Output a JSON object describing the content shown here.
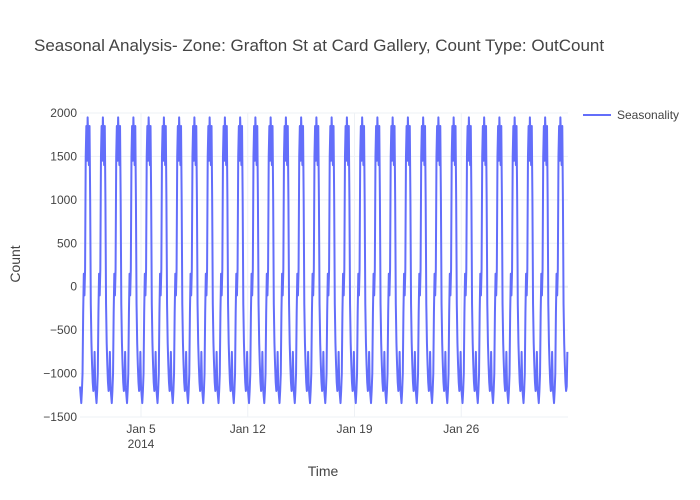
{
  "chart_data": {
    "type": "line",
    "title": "Seasonal Analysis- Zone: Grafton St at Card Gallery, Count Type: OutCount",
    "xlabel": "Time",
    "ylabel": "Count",
    "ylim": [
      -1500,
      2000
    ],
    "y_ticks": [
      -1500,
      -1000,
      -500,
      0,
      500,
      1000,
      1500,
      2000
    ],
    "y_tick_labels": [
      "−1500",
      "−1000",
      "−500",
      "0",
      "500",
      "1000",
      "1500",
      "2000"
    ],
    "x_range": [
      "2014-01-01T00:00",
      "2014-02-02T00:00"
    ],
    "x_ticks": [
      {
        "date": "2014-01-05",
        "label": "Jan 5",
        "sublabel": "2014"
      },
      {
        "date": "2014-01-12",
        "label": "Jan 12",
        "sublabel": ""
      },
      {
        "date": "2014-01-19",
        "label": "Jan 19",
        "sublabel": ""
      },
      {
        "date": "2014-01-26",
        "label": "Jan 26",
        "sublabel": ""
      }
    ],
    "grid": true,
    "legend_position": "top-right",
    "series": [
      {
        "name": "Seasonality",
        "color": "#636efa",
        "period": "daily",
        "start": "2014-01-01T00:00",
        "end": "2014-02-01T23:00",
        "daily_profile_hours": [
          0,
          1,
          2,
          3,
          4,
          5,
          6,
          7,
          8,
          9,
          10,
          11,
          12,
          13,
          14,
          15,
          16,
          17,
          18,
          19,
          20,
          21,
          22,
          23
        ],
        "daily_profile_values": [
          -1150,
          -1250,
          -1340,
          -1200,
          -1000,
          -300,
          150,
          -100,
          200,
          1500,
          1850,
          1450,
          1950,
          1700,
          1400,
          1850,
          1000,
          -200,
          -650,
          -900,
          -1100,
          -1200,
          -1150,
          -750
        ]
      }
    ]
  }
}
